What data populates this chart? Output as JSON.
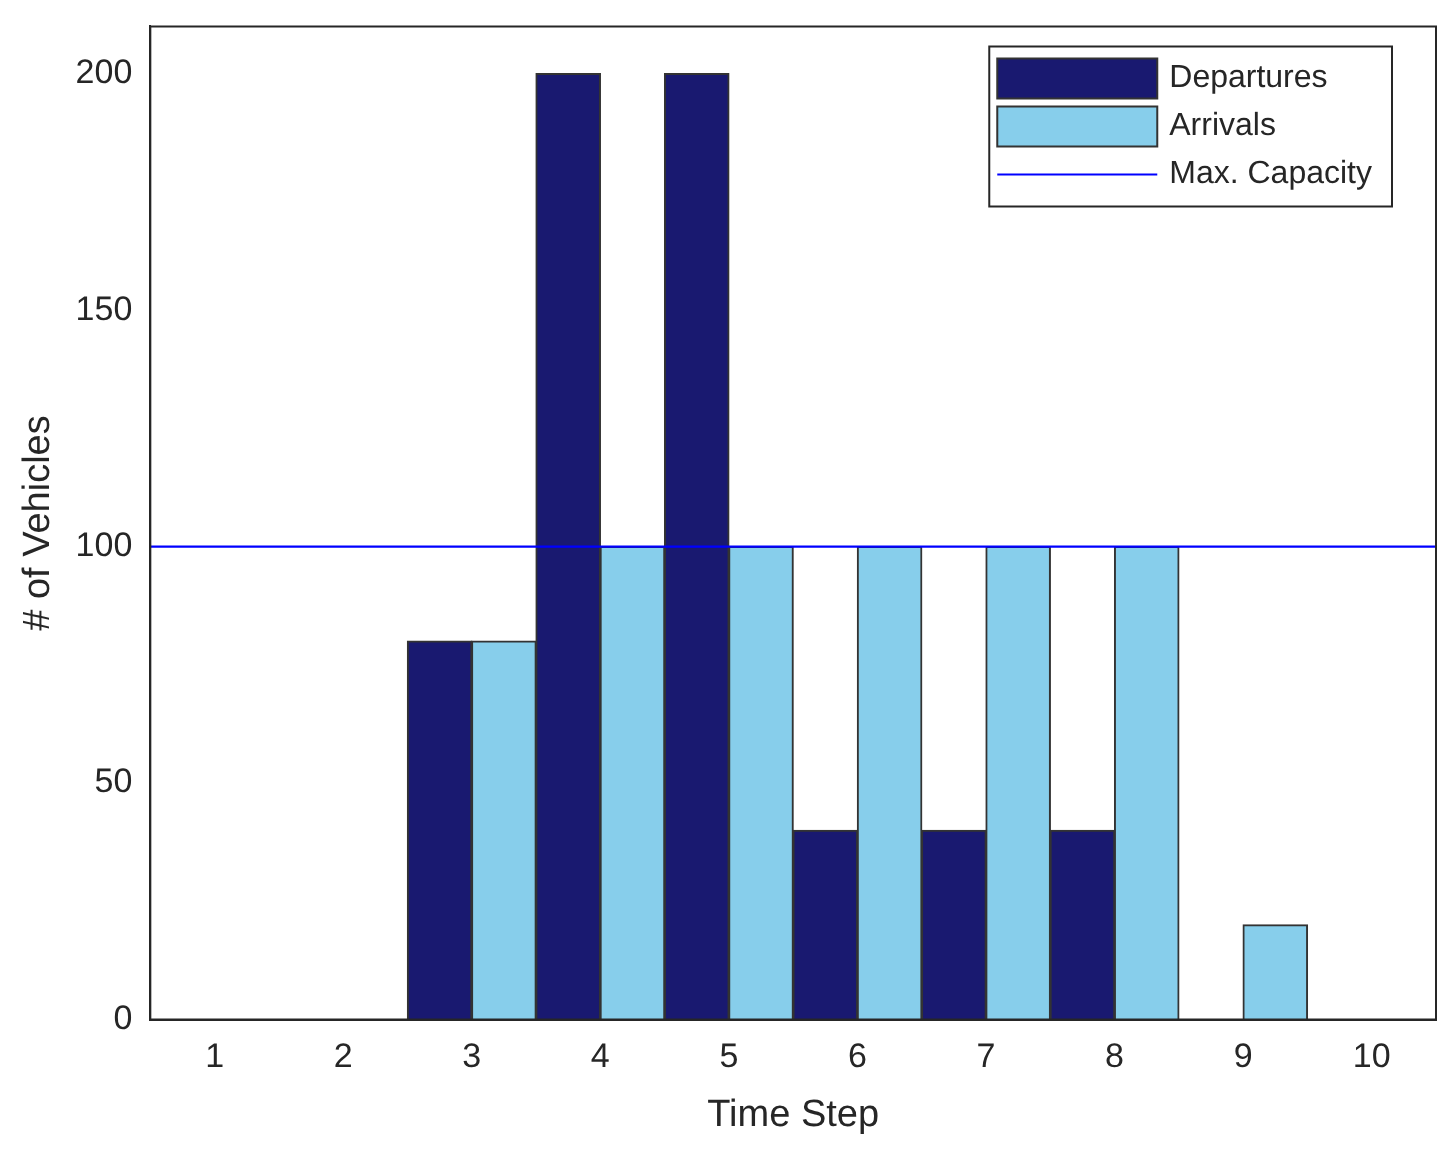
{
  "chart_data": {
    "type": "bar",
    "xlabel": "Time Step",
    "ylabel": "# of Vehicles",
    "categories": [
      "1",
      "2",
      "3",
      "4",
      "5",
      "6",
      "7",
      "8",
      "9",
      "10"
    ],
    "series": [
      {
        "name": "Departures",
        "color": "#191970",
        "values": [
          0,
          0,
          80,
          200,
          200,
          40,
          40,
          40,
          0,
          0
        ]
      },
      {
        "name": "Arrivals",
        "color": "#87ceeb",
        "values": [
          0,
          0,
          80,
          100,
          100,
          100,
          100,
          100,
          20,
          0
        ]
      }
    ],
    "ylim": [
      0,
      210
    ],
    "yticks": [
      0,
      50,
      100,
      150,
      200
    ],
    "ref_lines": [
      {
        "axis": "y",
        "value": 100,
        "label": "Max. Capacity",
        "color": "#0000ff",
        "line_style": "solid"
      }
    ],
    "legend": "top right",
    "grid": false
  }
}
